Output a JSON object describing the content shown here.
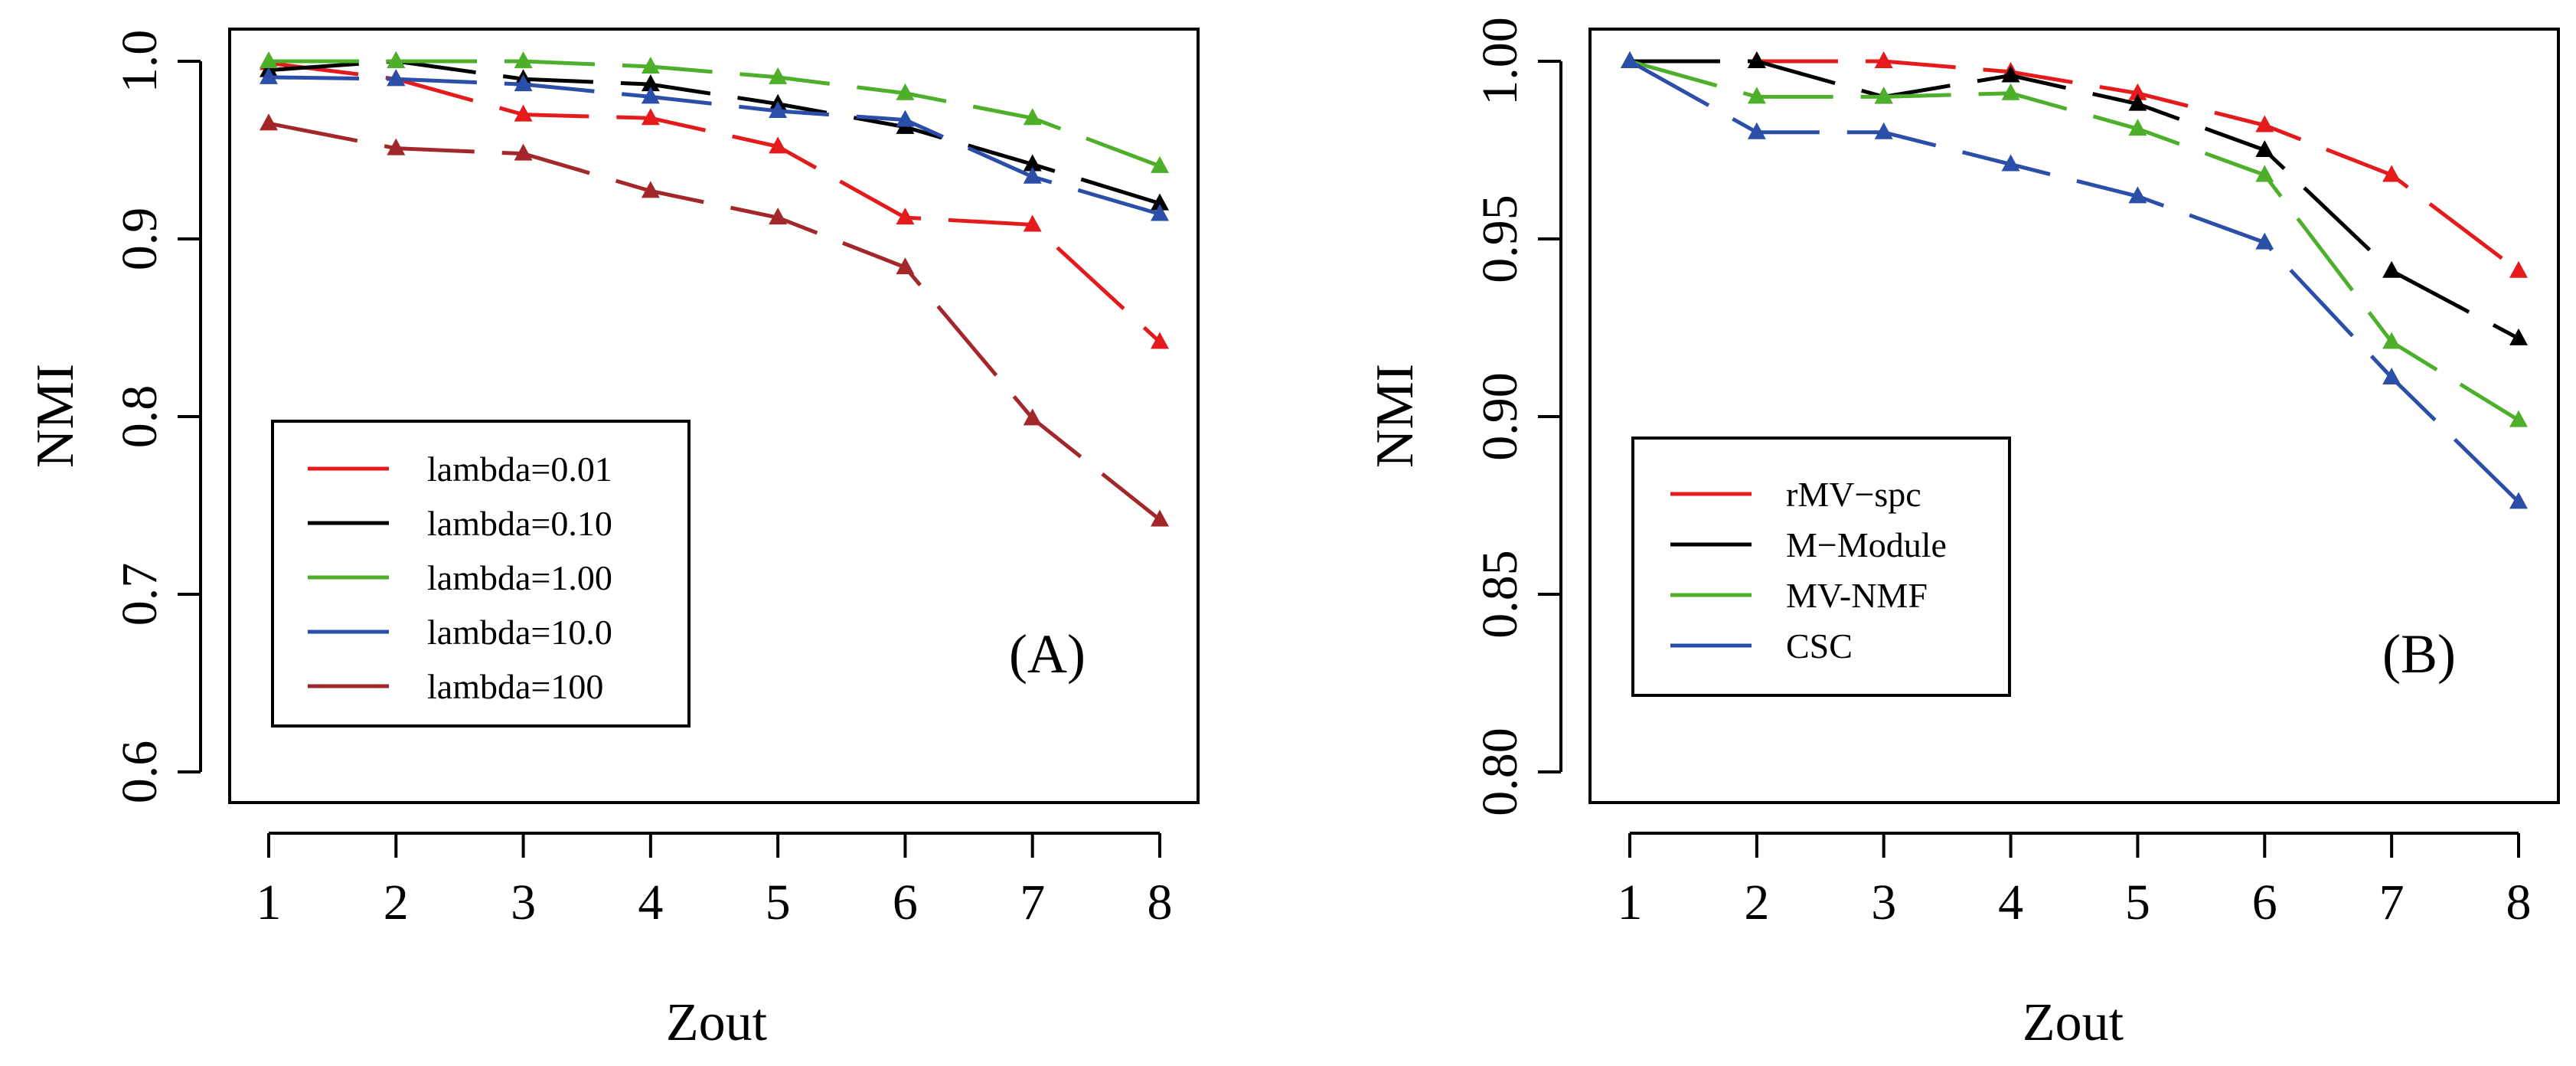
{
  "chart_data": [
    {
      "type": "line",
      "panel_label": "(A)",
      "xlabel": "Zout",
      "ylabel": "NMI",
      "x": [
        1,
        2,
        3,
        4,
        5,
        6,
        7,
        8
      ],
      "xlim": [
        1,
        8
      ],
      "ylim": [
        0.6,
        1.0
      ],
      "yticks": [
        0.6,
        0.7,
        0.8,
        0.9,
        1.0
      ],
      "ytick_labels": [
        "0.6",
        "0.7",
        "0.8",
        "0.9",
        "1.0"
      ],
      "xtick_labels": [
        "1",
        "2",
        "3",
        "4",
        "5",
        "6",
        "7",
        "8"
      ],
      "legend_position": "bottom-left",
      "series": [
        {
          "name": "lambda=0.01",
          "color": "#e41a1c",
          "values": [
            0.999,
            0.99,
            0.97,
            0.968,
            0.952,
            0.912,
            0.908,
            0.842
          ]
        },
        {
          "name": "lambda=0.10",
          "color": "#000000",
          "values": [
            0.995,
            1.0,
            0.99,
            0.987,
            0.976,
            0.963,
            0.942,
            0.92
          ]
        },
        {
          "name": "lambda=1.00",
          "color": "#4daf2a",
          "values": [
            1.0,
            1.0,
            1.0,
            0.997,
            0.991,
            0.982,
            0.968,
            0.941
          ]
        },
        {
          "name": "lambda=10.0",
          "color": "#2b4fa8",
          "values": [
            0.991,
            0.99,
            0.987,
            0.98,
            0.972,
            0.967,
            0.935,
            0.914
          ]
        },
        {
          "name": "lambda=100",
          "color": "#a3262a",
          "values": [
            0.965,
            0.951,
            0.948,
            0.927,
            0.912,
            0.884,
            0.799,
            0.742
          ]
        }
      ]
    },
    {
      "type": "line",
      "panel_label": "(B)",
      "xlabel": "Zout",
      "ylabel": "NMI",
      "x": [
        1,
        2,
        3,
        4,
        5,
        6,
        7,
        8
      ],
      "xlim": [
        1,
        8
      ],
      "ylim": [
        0.8,
        1.0
      ],
      "yticks": [
        0.8,
        0.85,
        0.9,
        0.95,
        1.0
      ],
      "ytick_labels": [
        "0.80",
        "0.85",
        "0.90",
        "0.95",
        "1.00"
      ],
      "xtick_labels": [
        "1",
        "2",
        "3",
        "4",
        "5",
        "6",
        "7",
        "8"
      ],
      "legend_position": "middle-left",
      "series": [
        {
          "name": "rMV−spc",
          "color": "#e41a1c",
          "values": [
            1.0,
            1.0,
            1.0,
            0.997,
            0.991,
            0.982,
            0.968,
            0.941
          ]
        },
        {
          "name": "M−Module",
          "color": "#000000",
          "values": [
            1.0,
            1.0,
            0.99,
            0.996,
            0.988,
            0.975,
            0.941,
            0.922
          ]
        },
        {
          "name": "MV-NMF",
          "color": "#4daf2a",
          "values": [
            1.0,
            0.99,
            0.99,
            0.991,
            0.981,
            0.968,
            0.921,
            0.899
          ]
        },
        {
          "name": "CSC",
          "color": "#2b4fa8",
          "values": [
            1.0,
            0.98,
            0.98,
            0.971,
            0.962,
            0.949,
            0.911,
            0.876
          ]
        }
      ]
    }
  ]
}
